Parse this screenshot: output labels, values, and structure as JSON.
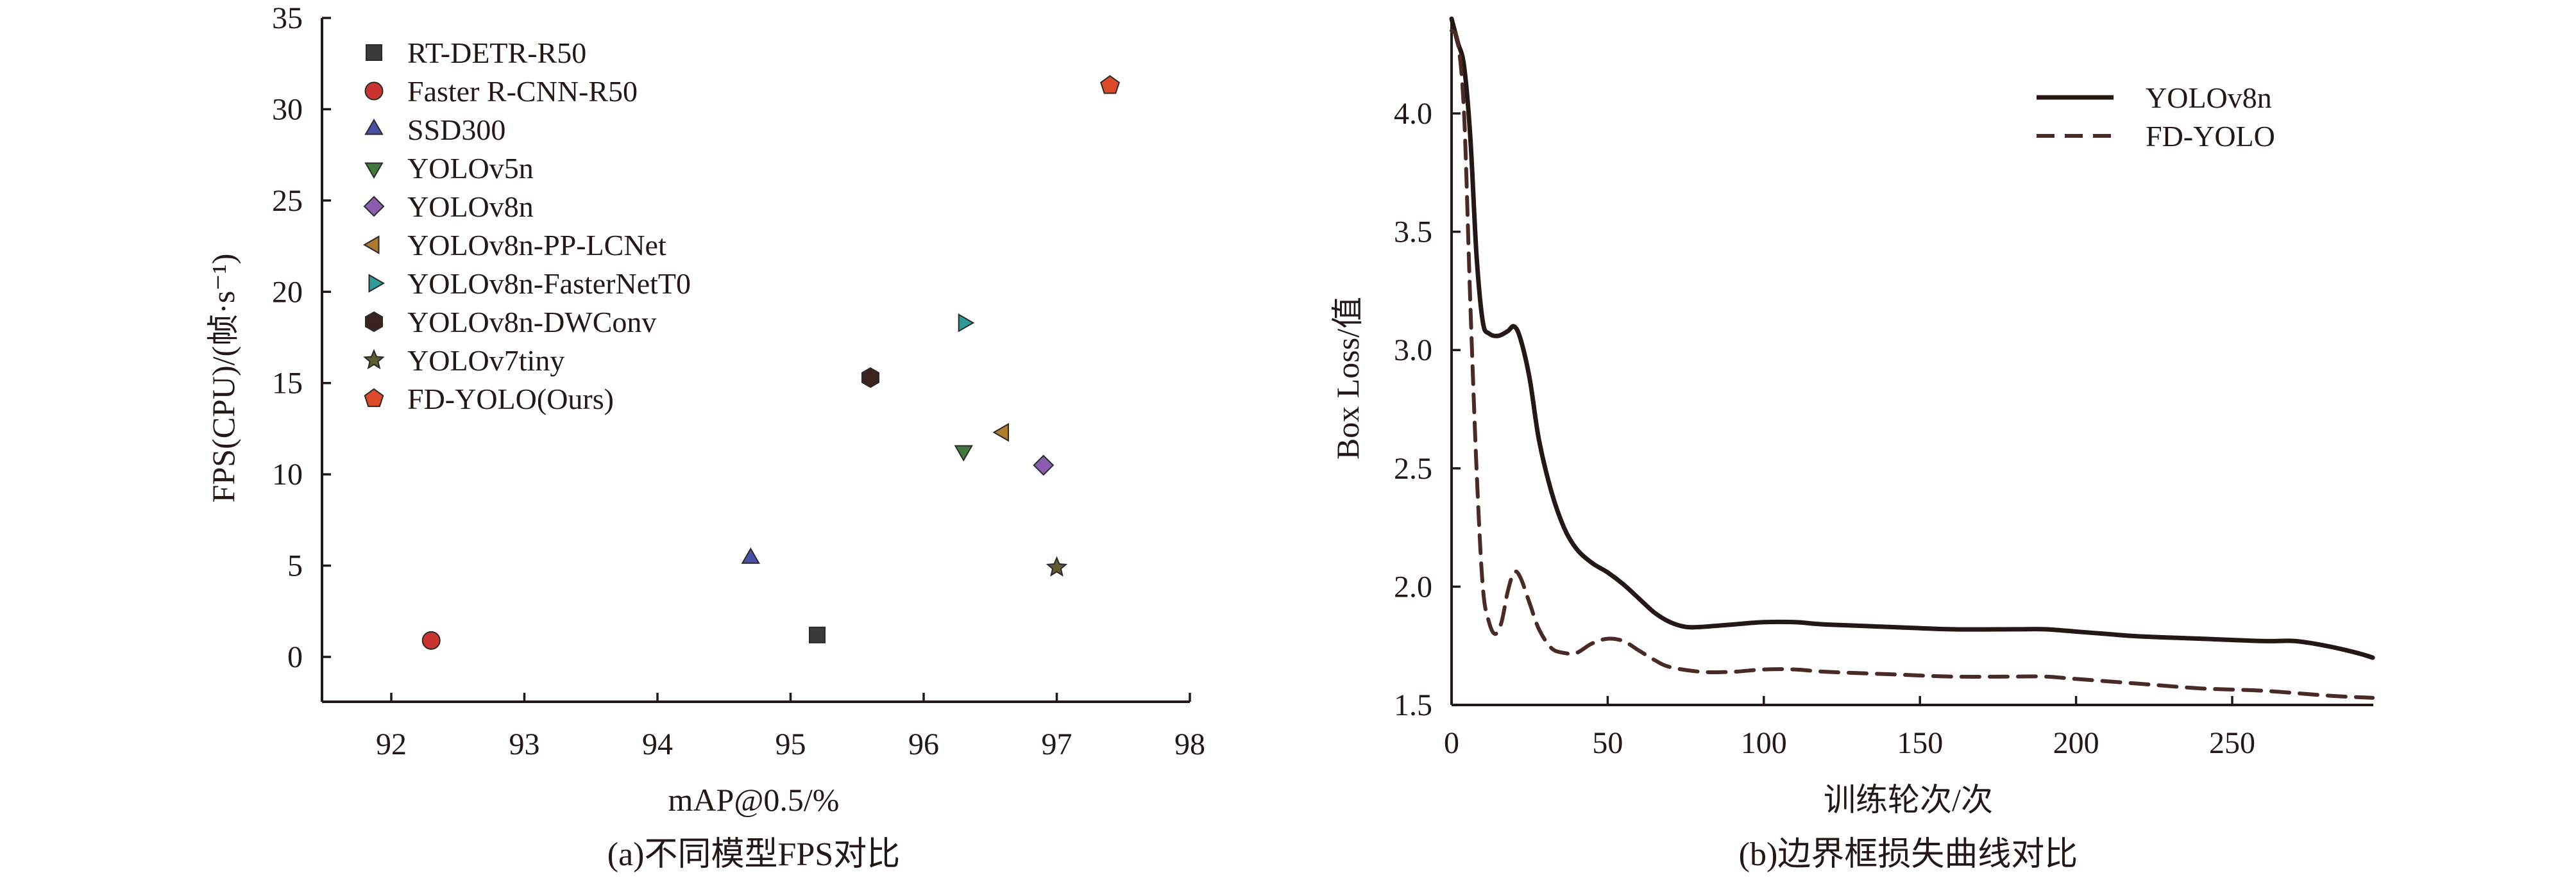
{
  "chart_data": [
    {
      "type": "scatter",
      "xlabel": "mAP@0.5/%",
      "ylabel": "FPS(CPU)/(帧·s⁻¹)",
      "caption": "(a)不同模型FPS对比",
      "xlim": [
        91.5,
        98
      ],
      "ylim": [
        -2.5,
        35
      ],
      "x_ticks": [
        "92",
        "93",
        "94",
        "95",
        "96",
        "97",
        "98"
      ],
      "y_ticks": [
        "0",
        "5",
        "10",
        "15",
        "20",
        "25",
        "30",
        "35"
      ],
      "x_tick_values": [
        92,
        93,
        94,
        95,
        96,
        97,
        98
      ],
      "y_tick_values": [
        0,
        5,
        10,
        15,
        20,
        25,
        30,
        35
      ],
      "legend_position": "top-left",
      "grid": false,
      "series": [
        {
          "name": "RT-DETR-R50",
          "x": 95.2,
          "y": 1.2,
          "marker": "square",
          "color": "#3a3a3a"
        },
        {
          "name": "Faster R-CNN-R50",
          "x": 92.3,
          "y": 0.9,
          "marker": "circle",
          "color": "#c8352e"
        },
        {
          "name": "SSD300",
          "x": 94.7,
          "y": 5.4,
          "marker": "triangle-up",
          "color": "#4a4fa8"
        },
        {
          "name": "YOLOv5n",
          "x": 96.3,
          "y": 11.3,
          "marker": "triangle-down",
          "color": "#3f7a3a"
        },
        {
          "name": "YOLOv8n",
          "x": 96.9,
          "y": 10.5,
          "marker": "diamond",
          "color": "#8c5cb0"
        },
        {
          "name": "YOLOv8n-PP-LCNet",
          "x": 96.6,
          "y": 12.3,
          "marker": "triangle-left",
          "color": "#b07a2e"
        },
        {
          "name": "YOLOv8n-FasterNetT0",
          "x": 96.3,
          "y": 18.3,
          "marker": "triangle-right",
          "color": "#2f9a9a"
        },
        {
          "name": "YOLOv8n-DWConv",
          "x": 95.6,
          "y": 15.3,
          "marker": "hexagon",
          "color": "#3a2320"
        },
        {
          "name": "YOLOv7tiny",
          "x": 97.0,
          "y": 4.9,
          "marker": "star",
          "color": "#5c5c2e"
        },
        {
          "name": "FD-YOLO(Ours)",
          "x": 97.4,
          "y": 31.3,
          "marker": "pentagon",
          "color": "#dd4a2a"
        }
      ]
    },
    {
      "type": "line",
      "xlabel": "训练轮次/次",
      "ylabel": "Box Loss/值",
      "caption": "(b)边界框损失曲线对比",
      "xlim": [
        0,
        295
      ],
      "ylim": [
        1.5,
        4.4
      ],
      "x_ticks": [
        "0",
        "50",
        "100",
        "150",
        "200",
        "250"
      ],
      "y_ticks": [
        "1.5",
        "2.0",
        "2.5",
        "3.0",
        "3.5",
        "4.0"
      ],
      "x_tick_values": [
        0,
        50,
        100,
        150,
        200,
        250
      ],
      "y_tick_values": [
        1.5,
        2.0,
        2.5,
        3.0,
        3.5,
        4.0
      ],
      "legend_position": "top-right",
      "grid": false,
      "series": [
        {
          "name": "YOLOv8n",
          "style": "solid",
          "color": "#231815",
          "x": [
            0,
            2,
            4,
            6,
            8,
            10,
            12,
            15,
            18,
            20,
            22,
            25,
            28,
            32,
            36,
            40,
            45,
            50,
            55,
            60,
            65,
            70,
            75,
            80,
            90,
            100,
            110,
            120,
            140,
            160,
            180,
            190,
            200,
            210,
            220,
            240,
            260,
            270,
            280,
            290,
            295
          ],
          "y": [
            4.4,
            4.3,
            4.2,
            3.9,
            3.4,
            3.12,
            3.07,
            3.06,
            3.08,
            3.1,
            3.05,
            2.88,
            2.62,
            2.4,
            2.25,
            2.16,
            2.1,
            2.06,
            2.01,
            1.95,
            1.89,
            1.85,
            1.83,
            1.83,
            1.84,
            1.85,
            1.85,
            1.84,
            1.83,
            1.82,
            1.82,
            1.82,
            1.81,
            1.8,
            1.79,
            1.78,
            1.77,
            1.77,
            1.75,
            1.72,
            1.7
          ]
        },
        {
          "name": "FD-YOLO",
          "style": "dashed",
          "color": "#4a2a26",
          "x": [
            0,
            2,
            4,
            6,
            8,
            10,
            12,
            14,
            16,
            18,
            20,
            22,
            25,
            28,
            32,
            36,
            40,
            45,
            50,
            55,
            60,
            65,
            70,
            80,
            90,
            100,
            110,
            120,
            140,
            160,
            180,
            190,
            200,
            220,
            240,
            260,
            280,
            295
          ],
          "y": [
            4.35,
            4.3,
            4.0,
            3.2,
            2.5,
            2.0,
            1.85,
            1.8,
            1.85,
            1.98,
            2.06,
            2.04,
            1.93,
            1.82,
            1.74,
            1.72,
            1.72,
            1.76,
            1.78,
            1.77,
            1.73,
            1.69,
            1.66,
            1.64,
            1.64,
            1.65,
            1.65,
            1.64,
            1.63,
            1.62,
            1.62,
            1.62,
            1.61,
            1.59,
            1.57,
            1.56,
            1.54,
            1.53
          ]
        }
      ]
    }
  ]
}
